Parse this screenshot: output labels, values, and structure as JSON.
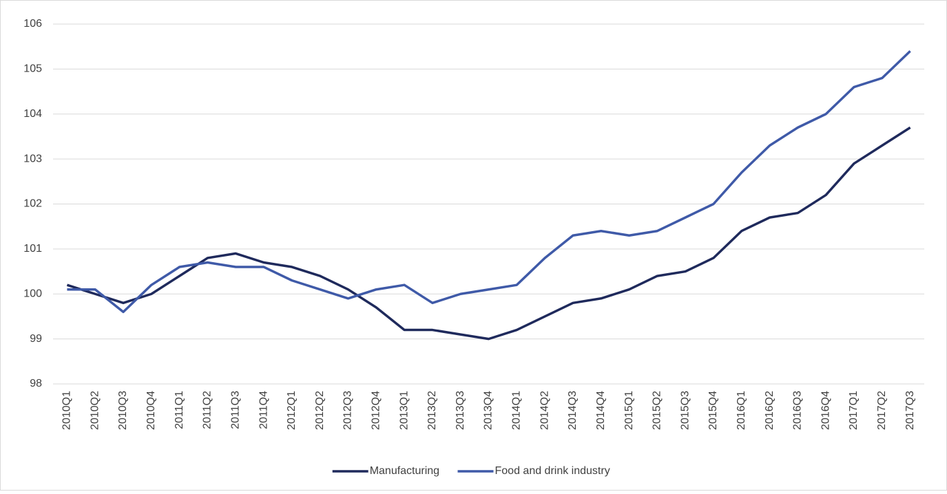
{
  "chart_data": {
    "type": "line",
    "categories": [
      "2010Q1",
      "2010Q2",
      "2010Q3",
      "2010Q4",
      "2011Q1",
      "2011Q2",
      "2011Q3",
      "2011Q4",
      "2012Q1",
      "2012Q2",
      "2012Q3",
      "2012Q4",
      "2013Q1",
      "2013Q2",
      "2013Q3",
      "2013Q4",
      "2014Q1",
      "2014Q2",
      "2014Q3",
      "2014Q4",
      "2015Q1",
      "2015Q2",
      "2015Q3",
      "2015Q4",
      "2016Q1",
      "2016Q2",
      "2016Q3",
      "2016Q4",
      "2017Q1",
      "2017Q2",
      "2017Q3"
    ],
    "series": [
      {
        "name": "Manufacturing",
        "color": "#1f2a5c",
        "values": [
          100.2,
          100.0,
          99.8,
          100.0,
          100.4,
          100.8,
          100.9,
          100.7,
          100.6,
          100.4,
          100.1,
          99.7,
          99.2,
          99.2,
          99.1,
          99.0,
          99.2,
          99.5,
          99.8,
          99.9,
          100.1,
          100.4,
          100.5,
          100.8,
          101.4,
          101.7,
          101.8,
          102.2,
          102.9,
          103.3,
          103.7
        ]
      },
      {
        "name": "Food and drink industry",
        "color": "#3f5aa8",
        "values": [
          100.1,
          100.1,
          99.6,
          100.2,
          100.6,
          100.7,
          100.6,
          100.6,
          100.3,
          100.1,
          99.9,
          100.1,
          100.2,
          99.8,
          100.0,
          100.1,
          100.2,
          100.8,
          101.3,
          101.4,
          101.3,
          101.4,
          101.7,
          102.0,
          102.7,
          103.3,
          103.7,
          104.0,
          104.6,
          104.8,
          105.4
        ]
      }
    ],
    "ylim": [
      98,
      106
    ],
    "yticks": [
      98,
      99,
      100,
      101,
      102,
      103,
      104,
      105,
      106
    ],
    "grid": true,
    "legend": "bottom"
  }
}
